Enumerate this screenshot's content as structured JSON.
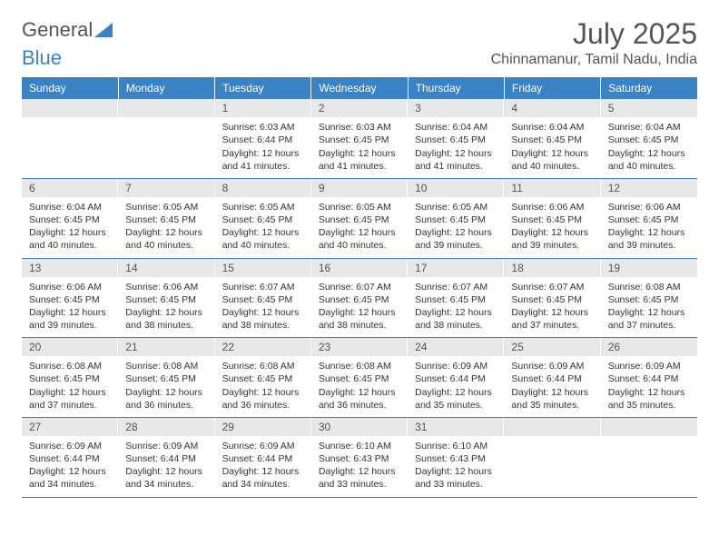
{
  "brand": {
    "part1": "General",
    "part2": "Blue"
  },
  "title": "July 2025",
  "location": "Chinnamanur, Tamil Nadu, India",
  "colors": {
    "header_bg": "#3b82c4",
    "header_text": "#ffffff",
    "daynum_bg": "#e8e8e8",
    "text": "#333333",
    "border": "#3b82c4"
  },
  "weekdays": [
    "Sunday",
    "Monday",
    "Tuesday",
    "Wednesday",
    "Thursday",
    "Friday",
    "Saturday"
  ],
  "first_weekday_index": 2,
  "days": [
    {
      "n": 1,
      "sunrise": "6:03 AM",
      "sunset": "6:44 PM",
      "daylight": "12 hours and 41 minutes."
    },
    {
      "n": 2,
      "sunrise": "6:03 AM",
      "sunset": "6:45 PM",
      "daylight": "12 hours and 41 minutes."
    },
    {
      "n": 3,
      "sunrise": "6:04 AM",
      "sunset": "6:45 PM",
      "daylight": "12 hours and 41 minutes."
    },
    {
      "n": 4,
      "sunrise": "6:04 AM",
      "sunset": "6:45 PM",
      "daylight": "12 hours and 40 minutes."
    },
    {
      "n": 5,
      "sunrise": "6:04 AM",
      "sunset": "6:45 PM",
      "daylight": "12 hours and 40 minutes."
    },
    {
      "n": 6,
      "sunrise": "6:04 AM",
      "sunset": "6:45 PM",
      "daylight": "12 hours and 40 minutes."
    },
    {
      "n": 7,
      "sunrise": "6:05 AM",
      "sunset": "6:45 PM",
      "daylight": "12 hours and 40 minutes."
    },
    {
      "n": 8,
      "sunrise": "6:05 AM",
      "sunset": "6:45 PM",
      "daylight": "12 hours and 40 minutes."
    },
    {
      "n": 9,
      "sunrise": "6:05 AM",
      "sunset": "6:45 PM",
      "daylight": "12 hours and 40 minutes."
    },
    {
      "n": 10,
      "sunrise": "6:05 AM",
      "sunset": "6:45 PM",
      "daylight": "12 hours and 39 minutes."
    },
    {
      "n": 11,
      "sunrise": "6:06 AM",
      "sunset": "6:45 PM",
      "daylight": "12 hours and 39 minutes."
    },
    {
      "n": 12,
      "sunrise": "6:06 AM",
      "sunset": "6:45 PM",
      "daylight": "12 hours and 39 minutes."
    },
    {
      "n": 13,
      "sunrise": "6:06 AM",
      "sunset": "6:45 PM",
      "daylight": "12 hours and 39 minutes."
    },
    {
      "n": 14,
      "sunrise": "6:06 AM",
      "sunset": "6:45 PM",
      "daylight": "12 hours and 38 minutes."
    },
    {
      "n": 15,
      "sunrise": "6:07 AM",
      "sunset": "6:45 PM",
      "daylight": "12 hours and 38 minutes."
    },
    {
      "n": 16,
      "sunrise": "6:07 AM",
      "sunset": "6:45 PM",
      "daylight": "12 hours and 38 minutes."
    },
    {
      "n": 17,
      "sunrise": "6:07 AM",
      "sunset": "6:45 PM",
      "daylight": "12 hours and 38 minutes."
    },
    {
      "n": 18,
      "sunrise": "6:07 AM",
      "sunset": "6:45 PM",
      "daylight": "12 hours and 37 minutes."
    },
    {
      "n": 19,
      "sunrise": "6:08 AM",
      "sunset": "6:45 PM",
      "daylight": "12 hours and 37 minutes."
    },
    {
      "n": 20,
      "sunrise": "6:08 AM",
      "sunset": "6:45 PM",
      "daylight": "12 hours and 37 minutes."
    },
    {
      "n": 21,
      "sunrise": "6:08 AM",
      "sunset": "6:45 PM",
      "daylight": "12 hours and 36 minutes."
    },
    {
      "n": 22,
      "sunrise": "6:08 AM",
      "sunset": "6:45 PM",
      "daylight": "12 hours and 36 minutes."
    },
    {
      "n": 23,
      "sunrise": "6:08 AM",
      "sunset": "6:45 PM",
      "daylight": "12 hours and 36 minutes."
    },
    {
      "n": 24,
      "sunrise": "6:09 AM",
      "sunset": "6:44 PM",
      "daylight": "12 hours and 35 minutes."
    },
    {
      "n": 25,
      "sunrise": "6:09 AM",
      "sunset": "6:44 PM",
      "daylight": "12 hours and 35 minutes."
    },
    {
      "n": 26,
      "sunrise": "6:09 AM",
      "sunset": "6:44 PM",
      "daylight": "12 hours and 35 minutes."
    },
    {
      "n": 27,
      "sunrise": "6:09 AM",
      "sunset": "6:44 PM",
      "daylight": "12 hours and 34 minutes."
    },
    {
      "n": 28,
      "sunrise": "6:09 AM",
      "sunset": "6:44 PM",
      "daylight": "12 hours and 34 minutes."
    },
    {
      "n": 29,
      "sunrise": "6:09 AM",
      "sunset": "6:44 PM",
      "daylight": "12 hours and 34 minutes."
    },
    {
      "n": 30,
      "sunrise": "6:10 AM",
      "sunset": "6:43 PM",
      "daylight": "12 hours and 33 minutes."
    },
    {
      "n": 31,
      "sunrise": "6:10 AM",
      "sunset": "6:43 PM",
      "daylight": "12 hours and 33 minutes."
    }
  ],
  "labels": {
    "sunrise": "Sunrise:",
    "sunset": "Sunset:",
    "daylight": "Daylight:"
  }
}
